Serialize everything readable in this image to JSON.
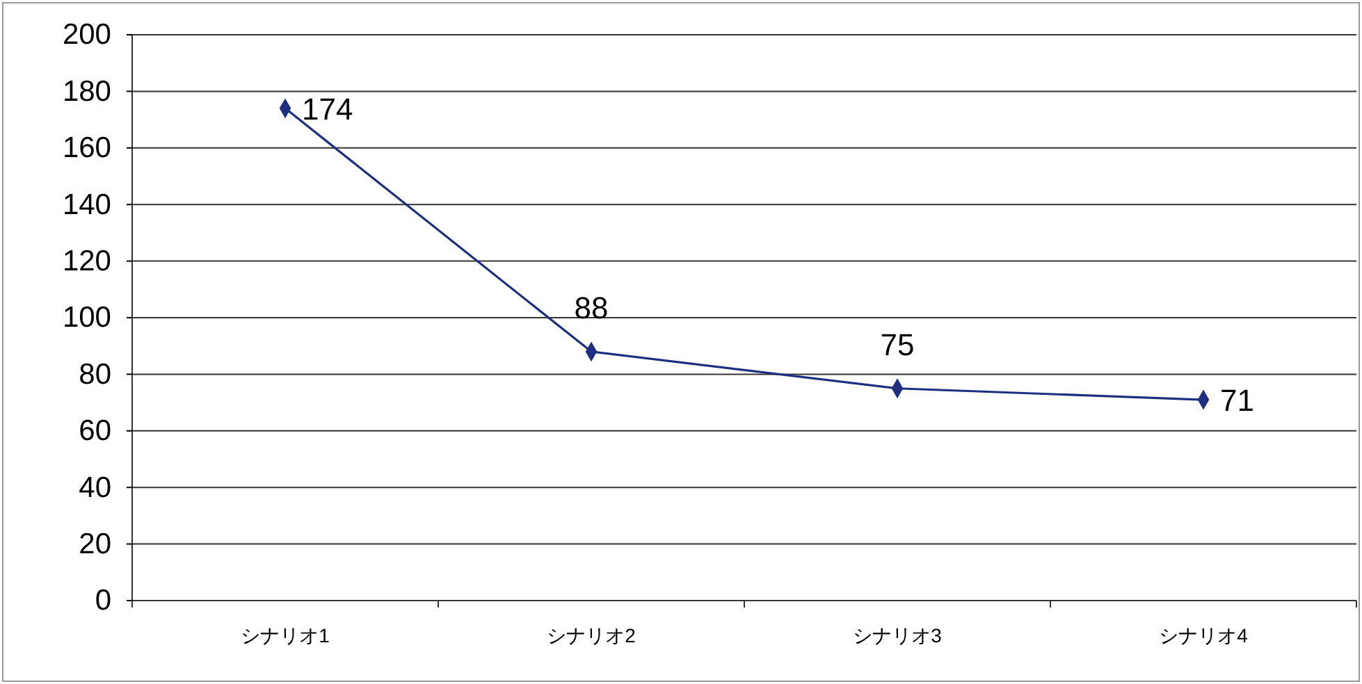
{
  "chart_data": {
    "type": "line",
    "categories": [
      "シナリオ1",
      "シナリオ2",
      "シナリオ3",
      "シナリオ4"
    ],
    "series": [
      {
        "color": "#1f2f80",
        "values": [
          174,
          88,
          75,
          71
        ]
      }
    ],
    "ylim": [
      0,
      200
    ],
    "yticks": [
      0,
      20,
      40,
      60,
      80,
      100,
      120,
      140,
      160,
      180,
      200
    ],
    "grid": "y",
    "marker": "diamond",
    "line_style": "solid",
    "data_labels": true
  }
}
